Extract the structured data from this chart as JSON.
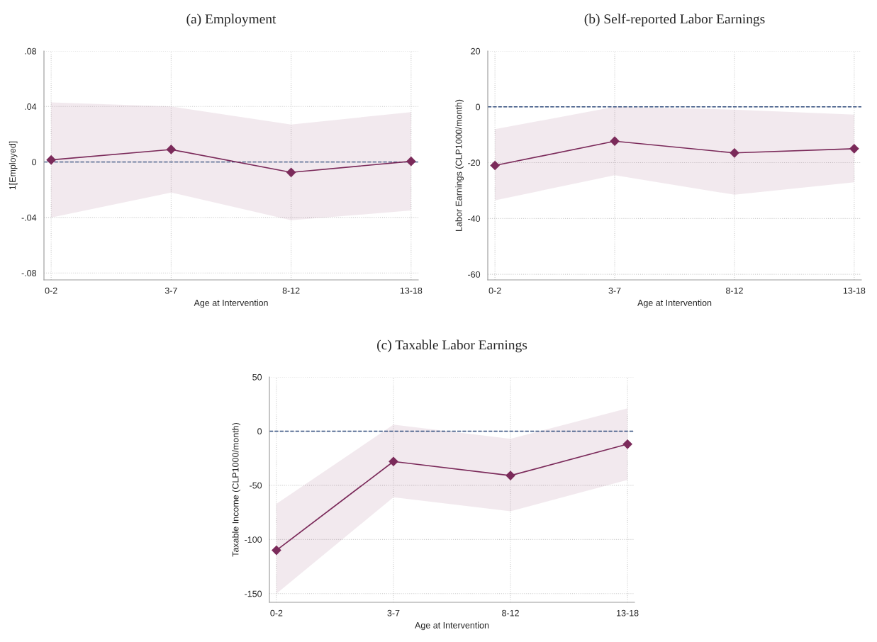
{
  "chart_data": [
    {
      "type": "line",
      "title": "(a) Employment",
      "xlabel": "Age at Intervention",
      "ylabel": "1[Employed]",
      "categories": [
        "0-2",
        "3-7",
        "8-12",
        "13-18"
      ],
      "series": [
        {
          "color": "#7b2a5a",
          "values": [
            0.0015,
            0.009,
            -0.0075,
            0.0005
          ],
          "lower": [
            -0.04,
            -0.022,
            -0.042,
            -0.035
          ],
          "upper": [
            0.043,
            0.04,
            0.027,
            0.036
          ]
        }
      ],
      "ylim": [
        -0.085,
        0.08
      ],
      "yticks": [
        {
          "value": -0.08,
          "label": "-.08"
        },
        {
          "value": -0.04,
          "label": "-.04"
        },
        0,
        {
          "value": 0.04,
          "label": ".04"
        },
        {
          "value": 0.08,
          "label": ".08"
        }
      ],
      "ref_lines": [
        {
          "axis": "y",
          "value": 0,
          "color": "#2f4b7c",
          "line_style": "dashed"
        }
      ],
      "grid": true,
      "marker": "diamond",
      "legend": false
    },
    {
      "type": "line",
      "title": "(b) Self-reported Labor Earnings",
      "xlabel": "Age at Intervention",
      "ylabel": "Labor Earnings (CLP1000/month)",
      "categories": [
        "0-2",
        "3-7",
        "8-12",
        "13-18"
      ],
      "series": [
        {
          "color": "#7b2a5a",
          "values": [
            -21,
            -12.3,
            -16.5,
            -15
          ],
          "lower": [
            -33.5,
            -24.5,
            -31.5,
            -27
          ],
          "upper": [
            -8,
            0,
            -1,
            -2.8
          ]
        }
      ],
      "ylim": [
        -62,
        20
      ],
      "yticks": [
        -60,
        -40,
        -20,
        0,
        20
      ],
      "ref_lines": [
        {
          "axis": "y",
          "value": 0,
          "color": "#2f4b7c",
          "line_style": "dashed"
        }
      ],
      "grid": true,
      "marker": "diamond",
      "legend": false
    },
    {
      "type": "line",
      "title": "(c) Taxable Labor Earnings",
      "xlabel": "Age at Intervention",
      "ylabel": "Taxable Income (CLP1000/month)",
      "categories": [
        "0-2",
        "3-7",
        "8-12",
        "13-18"
      ],
      "series": [
        {
          "color": "#7b2a5a",
          "values": [
            -110,
            -28,
            -41,
            -12
          ],
          "lower": [
            -150,
            -61,
            -74,
            -45
          ],
          "upper": [
            -67,
            6,
            -7,
            21
          ]
        }
      ],
      "ylim": [
        -158,
        50
      ],
      "yticks": [
        -150,
        -100,
        -50,
        0,
        50
      ],
      "ref_lines": [
        {
          "axis": "y",
          "value": 0,
          "color": "#2f4b7c",
          "line_style": "dashed"
        }
      ],
      "grid": true,
      "marker": "diamond",
      "legend": false
    }
  ]
}
